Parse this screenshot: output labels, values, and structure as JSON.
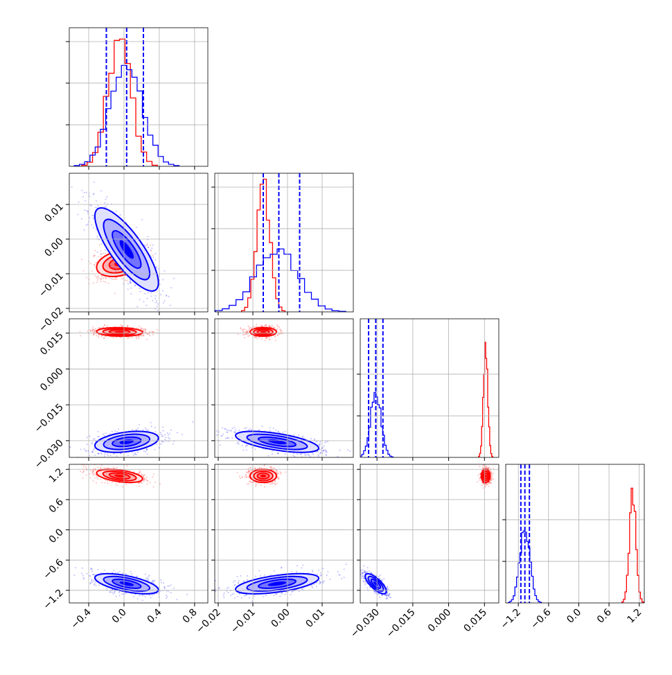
{
  "colors": {
    "red": "#ff0000",
    "blue": "#0000ff",
    "grid": "#b0b0b0",
    "axis": "#000000"
  },
  "chart_data": {
    "type": "corner",
    "title": "",
    "grid": true,
    "variables": [
      {
        "range": [
          -0.62,
          0.95
        ],
        "ticks": [
          -0.4,
          0.0,
          0.4,
          0.8
        ],
        "tick_labels": [
          "−0.4",
          "0.0",
          "0.4",
          "0.8"
        ]
      },
      {
        "range": [
          -0.021,
          0.019
        ],
        "ticks": [
          -0.02,
          -0.01,
          0.0,
          0.01
        ],
        "tick_labels": [
          "−0.02",
          "−0.01",
          "0.00",
          "0.01"
        ]
      },
      {
        "range": [
          -0.037,
          0.021
        ],
        "ticks": [
          -0.03,
          -0.015,
          0.0,
          0.015
        ],
        "tick_labels": [
          "−0.030",
          "−0.015",
          "0.000",
          "0.015"
        ]
      },
      {
        "range": [
          -1.45,
          1.3
        ],
        "ticks": [
          -1.2,
          -0.6,
          0.0,
          0.6,
          1.2
        ],
        "tick_labels": [
          "−1.2",
          "−0.6",
          "0.0",
          "0.6",
          "1.2"
        ]
      }
    ],
    "diag_y_ticks": [
      [
        0.333,
        0.667,
        1.0
      ],
      [
        0.333,
        0.667,
        1.0
      ],
      [
        0.333,
        0.667
      ],
      [
        0.333,
        0.667
      ]
    ],
    "series": [
      {
        "color": "red",
        "mean": [
          -0.05,
          -0.007,
          0.0155,
          1.07
        ],
        "std": [
          0.13,
          0.0019,
          0.0009,
          0.065
        ],
        "corr": [
          [
            1,
            0.3,
            -0.1,
            -0.45
          ],
          [
            0.3,
            1,
            0,
            0
          ],
          [
            -0.1,
            0,
            1,
            0
          ],
          [
            -0.45,
            0,
            0,
            1
          ]
        ],
        "hist_bins": 14,
        "hist_peak": [
          1.14,
          1.14,
          0.97,
          0.96
        ]
      },
      {
        "color": "blue",
        "mean": [
          0.03,
          -0.003,
          -0.0305,
          -1.07
        ],
        "std": [
          0.18,
          0.006,
          0.0022,
          0.1
        ],
        "corr": [
          [
            1,
            -0.8,
            0.35,
            -0.6
          ],
          [
            -0.8,
            1,
            -0.6,
            0.55
          ],
          [
            0.35,
            -0.6,
            1,
            -0.75
          ],
          [
            -0.6,
            0.55,
            -0.75,
            1
          ]
        ],
        "hist_bins": 20,
        "hist_peak": [
          0.9,
          0.55,
          0.57,
          0.67
        ]
      }
    ],
    "quantile_lines": [
      [
        -0.2,
        0.03,
        0.22
      ],
      [
        -0.007,
        -0.0025,
        0.0035
      ],
      [
        -0.0335,
        -0.0305,
        -0.0275
      ],
      [
        -1.15,
        -1.07,
        -0.98
      ]
    ]
  }
}
